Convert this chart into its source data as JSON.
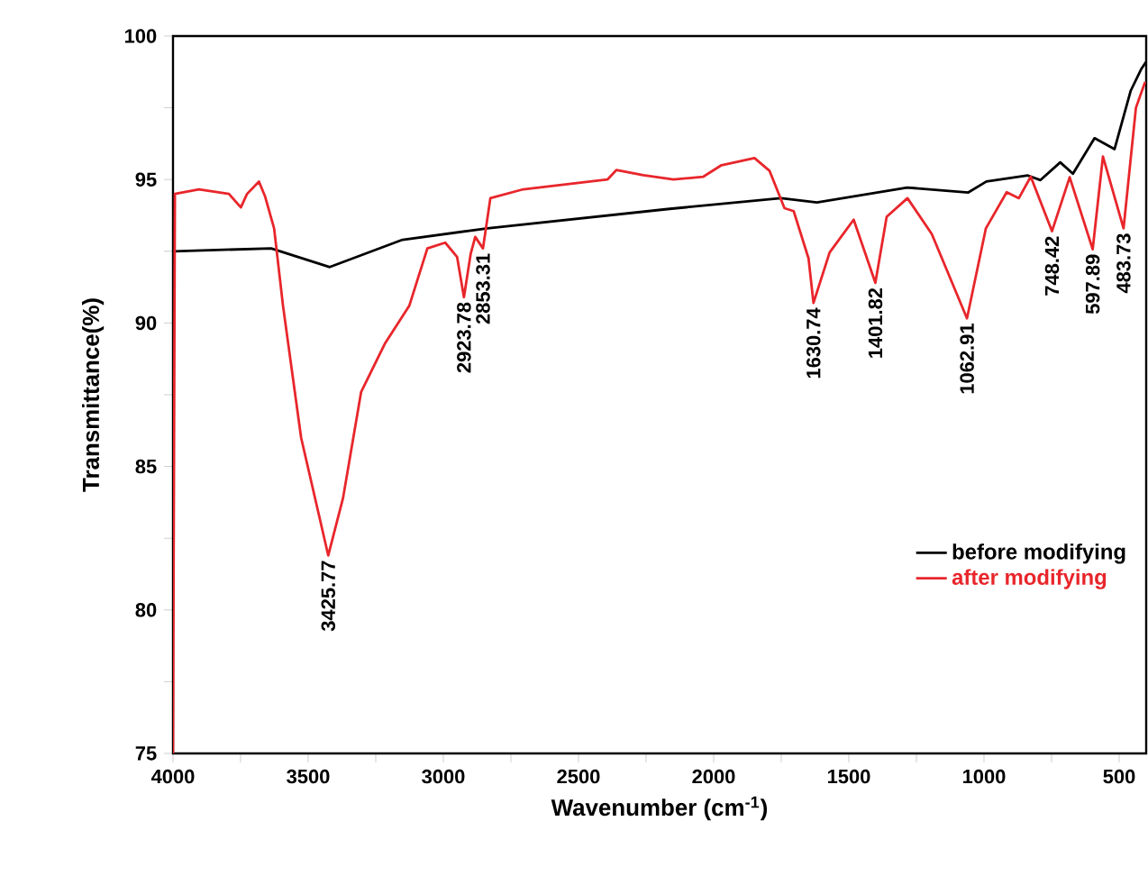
{
  "chart_data": {
    "type": "line",
    "xlabel": "Wavenumber (cm$^{-1}$)",
    "ylabel": "Transmittance(%)",
    "xlim": [
      4000,
      400
    ],
    "ylim": [
      75,
      100
    ],
    "xticks": [
      4000,
      {
        "value": 3750,
        "label": null
      },
      3500,
      {
        "value": 3250,
        "label": null
      },
      3000,
      {
        "value": 2750,
        "label": null
      },
      2500,
      {
        "value": 2250,
        "label": null
      },
      2000,
      {
        "value": 1750,
        "label": null
      },
      1500,
      {
        "value": 1250,
        "label": null
      },
      1000,
      {
        "value": 750,
        "label": null
      },
      500
    ],
    "yticks": [
      75,
      {
        "value": 77.5,
        "label": null
      },
      80,
      {
        "value": 82.5,
        "label": null
      },
      85,
      {
        "value": 87.5,
        "label": null
      },
      90,
      {
        "value": 92.5,
        "label": null
      },
      95,
      {
        "value": 97.5,
        "label": null
      },
      100
    ],
    "legend": "bottom right",
    "grid": false,
    "marker": "none",
    "line_style": "solid",
    "series": [
      {
        "name": "before modifying",
        "color": "#000000",
        "x": [
          3997,
          3637,
          3420,
          3151,
          2837,
          2171,
          1751,
          1618,
          1284,
          1058,
          991,
          838,
          791,
          718,
          671,
          591,
          517,
          457,
          417,
          400
        ],
        "values": [
          92.5,
          92.6,
          91.95,
          92.9,
          93.3,
          93.97,
          94.35,
          94.2,
          94.72,
          94.55,
          94.93,
          95.14,
          94.98,
          95.6,
          95.2,
          96.44,
          96.06,
          98.1,
          98.87,
          99.1
        ]
      },
      {
        "name": "after modifying",
        "color": "#e8262b",
        "x": [
          4000,
          3993,
          3904,
          3793,
          3749,
          3726,
          3682,
          3659,
          3626,
          3593,
          3526,
          3425.77,
          3371,
          3304,
          3215,
          3126,
          3059,
          2993,
          2949,
          2923.78,
          2899,
          2882,
          2853.31,
          2826,
          2704,
          2393,
          2360,
          2260,
          2149,
          2038,
          1971,
          1849,
          1793,
          1738,
          1704,
          1649,
          1630.74,
          1571,
          1482,
          1401.82,
          1360,
          1283,
          1193,
          1062.91,
          993,
          916,
          871,
          827,
          748.42,
          683,
          597.89,
          560,
          483.73,
          438,
          404
        ],
        "values": [
          75,
          94.5,
          94.66,
          94.5,
          94.03,
          94.5,
          94.93,
          94.4,
          93.3,
          90.6,
          86.0,
          81.9,
          83.9,
          87.6,
          89.3,
          90.6,
          92.6,
          92.8,
          92.3,
          90.9,
          92.4,
          93.0,
          92.6,
          94.35,
          94.66,
          95.0,
          95.33,
          95.15,
          95.0,
          95.1,
          95.5,
          95.75,
          95.3,
          94.0,
          93.9,
          92.25,
          90.7,
          92.46,
          93.6,
          91.4,
          93.7,
          94.35,
          93.1,
          90.16,
          93.3,
          94.56,
          94.35,
          95.1,
          93.2,
          95.08,
          92.57,
          95.8,
          93.3,
          97.5,
          98.4
        ]
      }
    ],
    "annotations": [
      {
        "text": "3425.77",
        "x": 3425.77,
        "y": 81.9
      },
      {
        "text": "2923.78",
        "x": 2923.78,
        "y": 90.9
      },
      {
        "text": "2853.31",
        "x": 2853.31,
        "y": 92.6
      },
      {
        "text": "1630.74",
        "x": 1630.74,
        "y": 90.7
      },
      {
        "text": "1401.82",
        "x": 1401.82,
        "y": 91.4
      },
      {
        "text": "1062.91",
        "x": 1062.91,
        "y": 90.16
      },
      {
        "text": "748.42",
        "x": 748.42,
        "y": 93.2
      },
      {
        "text": "597.89",
        "x": 597.89,
        "y": 92.57
      },
      {
        "text": "483.73",
        "x": 483.73,
        "y": 93.3
      }
    ]
  }
}
